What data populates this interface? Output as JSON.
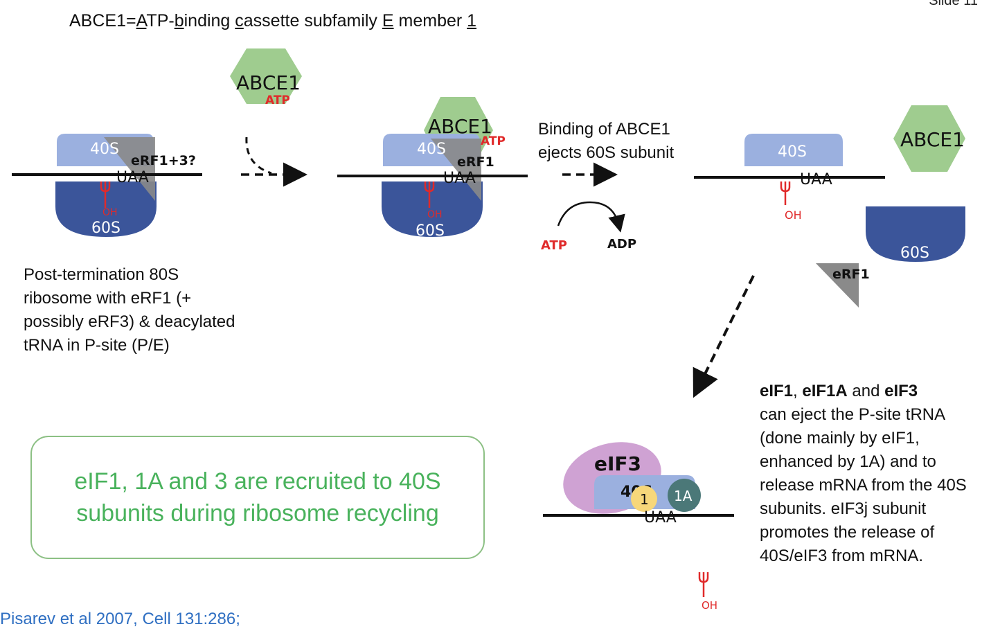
{
  "slide_label": "Slide 11",
  "title": {
    "prefix": "ABCE1=",
    "parts": [
      "A",
      "TP-",
      "b",
      "inding ",
      "c",
      "assette subfamily ",
      "E",
      " member ",
      "1"
    ]
  },
  "labels": {
    "abce1": "ABCE1",
    "atp": "ATP",
    "adp": "ADP",
    "s40": "40S",
    "s60": "60S",
    "uaa": "UAA",
    "erf13": "eRF1+3?",
    "erf1": "eRF1",
    "oh": "OH",
    "eif3": "eIF3",
    "s40_partial": "40S",
    "one": "1",
    "one_a": "1A"
  },
  "texts": {
    "post_termination": "Post-termination 80S ribosome with eRF1 (+ possibly eRF3) & deacylated tRNA in P-site (P/E)",
    "binding": "Binding of ABCE1 ejects 60S subunit",
    "right_b1": "eIF1",
    "right_sep1": ", ",
    "right_b2": "eIF1A",
    "right_sep2": " and ",
    "right_b3": "eIF3",
    "right_rest": "can eject the P-site tRNA (done mainly by eIF1, enhanced by 1A) and to release mRNA from the 40S subunits. eIF3j subunit promotes the release of 40S/eIF3 from mRNA.",
    "green_box": "eIF1, 1A and 3 are recruited to 40S subunits during ribosome recycling",
    "citation": "Pisarev et al 2007, Cell 131:286;"
  },
  "colors": {
    "s40": "#9bb0df",
    "s60": "#3b559a",
    "abce1": "#9fcc8f",
    "erf": "#8a8a8a",
    "red": "#e02a2a",
    "eif3": "#cfa2d3",
    "eif1": "#f7d77a",
    "eif1a": "#4b7878",
    "green_text": "#49b25c",
    "box_border": "#8cc084",
    "link": "#2f6fc2"
  }
}
